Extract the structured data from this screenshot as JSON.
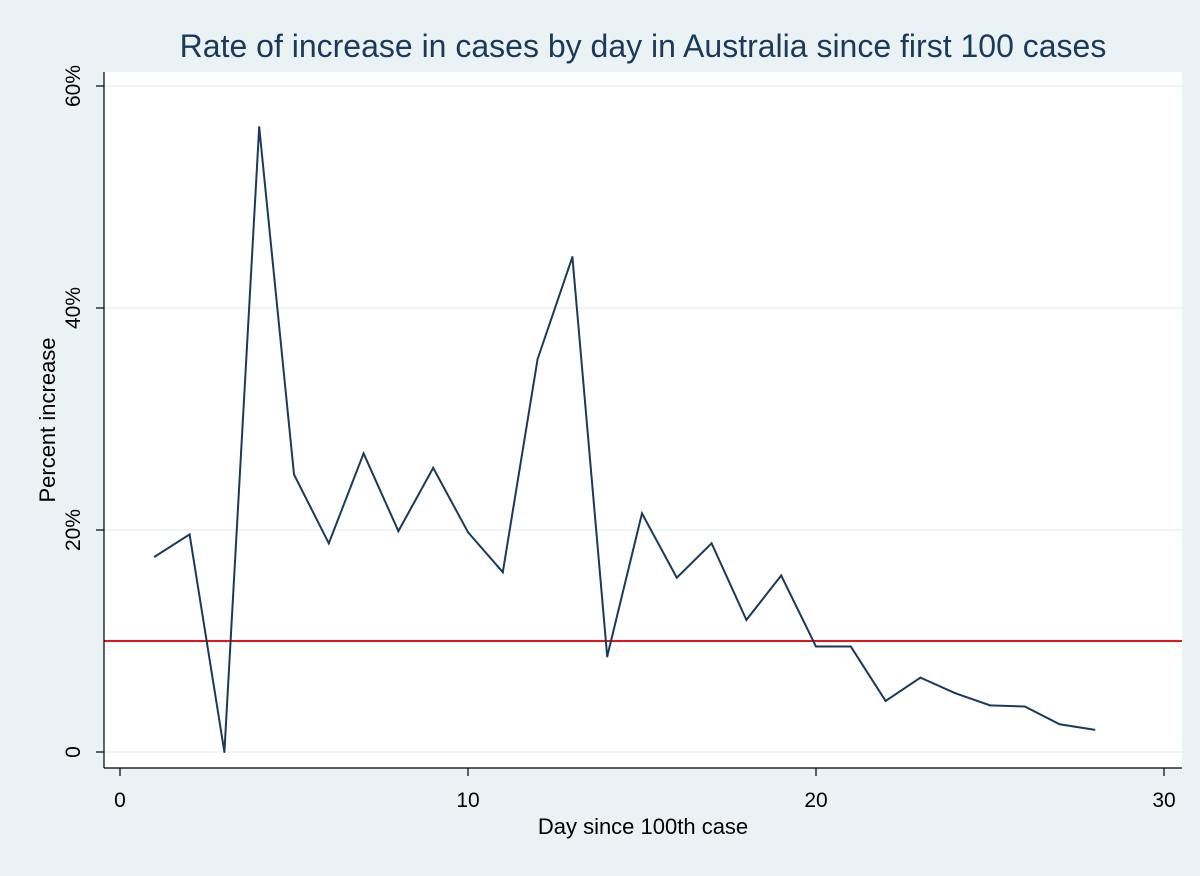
{
  "colors": {
    "background": "#eaf2f3",
    "plot_background": "#ffffff",
    "series_line": "#1a3a5c",
    "reference_line": "#e8141b",
    "grid": "#eaf2f3",
    "title": "#1a3a5c"
  },
  "chart_data": {
    "type": "line",
    "title": "Rate of increase in cases by day in Australia since first 100 cases",
    "xlabel": "Day since 100th case",
    "ylabel": "Percent increase",
    "xlim": [
      0,
      30
    ],
    "ylim": [
      0,
      60
    ],
    "x_ticks": [
      0,
      10,
      20,
      30
    ],
    "x_tick_labels": [
      "0",
      "10",
      "20",
      "30"
    ],
    "y_ticks": [
      0,
      20,
      40,
      60
    ],
    "y_tick_labels": [
      "0",
      "20%",
      "40%",
      "60%"
    ],
    "grid": true,
    "reference_line": {
      "axis": "y",
      "value": 10
    },
    "series": [
      {
        "name": "Percent increase",
        "x": [
          1,
          2,
          3,
          4,
          5,
          6,
          7,
          8,
          9,
          10,
          11,
          12,
          13,
          14,
          15,
          16,
          17,
          18,
          19,
          20,
          21,
          22,
          23,
          24,
          25,
          26,
          27,
          28
        ],
        "values": [
          17.6,
          19.6,
          0,
          56.3,
          25.0,
          18.8,
          26.9,
          19.9,
          25.6,
          19.8,
          16.2,
          35.4,
          44.6,
          8.6,
          21.5,
          15.7,
          18.8,
          11.9,
          15.9,
          9.5,
          9.5,
          4.6,
          6.7,
          5.3,
          4.2,
          4.1,
          2.5,
          2.0
        ]
      }
    ]
  }
}
